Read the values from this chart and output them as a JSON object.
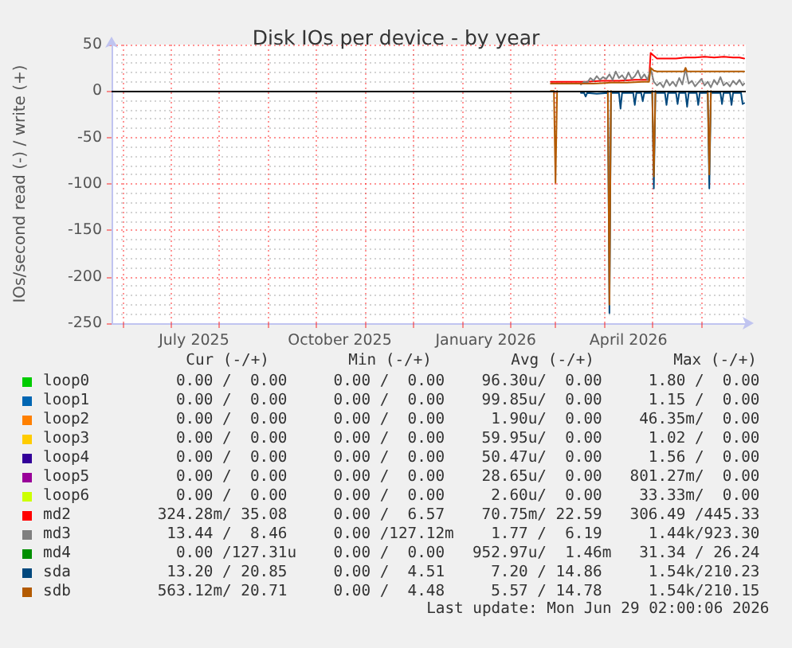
{
  "chart_data": {
    "type": "line",
    "title": "Disk IOs per device - by year",
    "ylabel": "IOs/second read (-) / write (+)",
    "xlim": [
      "2025-05-25",
      "2026-06-29"
    ],
    "xticks": [
      {
        "value": "2025-06-01",
        "label": null
      },
      {
        "value": "2025-07-01",
        "label": null
      },
      {
        "value": "2025-08-01",
        "label": null
      },
      {
        "value": "2025-09-01",
        "label": null
      },
      {
        "value": "2025-10-01",
        "label": null
      },
      {
        "value": "2025-11-01",
        "label": null
      },
      {
        "value": "2025-12-01",
        "label": null
      },
      {
        "value": "2026-01-01",
        "label": null
      },
      {
        "value": "2026-02-01",
        "label": null
      },
      {
        "value": "2026-03-01",
        "label": null
      },
      {
        "value": "2026-04-01",
        "label": null
      },
      {
        "value": "2026-05-01",
        "label": null
      },
      {
        "value": "2026-06-01",
        "label": null
      },
      {
        "value": "2025-07-16",
        "label": "July 2025"
      },
      {
        "value": "2025-10-16",
        "label": "October 2025"
      },
      {
        "value": "2026-01-16",
        "label": "January 2026"
      },
      {
        "value": "2026-04-16",
        "label": "April 2026"
      }
    ],
    "ylim": [
      -250,
      50
    ],
    "yticks": [
      -250,
      -200,
      -150,
      -100,
      -50,
      0,
      50
    ],
    "grid": true,
    "legend": "bottom",
    "ref_lines": [
      {
        "axis": "y",
        "value": 0,
        "color": "#000000"
      }
    ],
    "series": [
      {
        "name": "loop0",
        "color": "#00cc00"
      },
      {
        "name": "loop1",
        "color": "#0066b3"
      },
      {
        "name": "loop2",
        "color": "#ff8000"
      },
      {
        "name": "loop3",
        "color": "#ffcc00"
      },
      {
        "name": "loop4",
        "color": "#330099"
      },
      {
        "name": "loop5",
        "color": "#990099"
      },
      {
        "name": "loop6",
        "color": "#ccff00"
      },
      {
        "name": "md2",
        "color": "#ff0000",
        "x": [
          "2026-02-26",
          "2026-03-10",
          "2026-03-20",
          "2026-03-30",
          "2026-04-10",
          "2026-04-20",
          "2026-04-28",
          "2026-04-29",
          "2026-04-30",
          "2026-05-02",
          "2026-05-04",
          "2026-05-10",
          "2026-05-16",
          "2026-05-22",
          "2026-05-28",
          "2026-06-03",
          "2026-06-09",
          "2026-06-15",
          "2026-06-21",
          "2026-06-25",
          "2026-06-28"
        ],
        "values": [
          10,
          10,
          10,
          11,
          11,
          12,
          12,
          12,
          41,
          38,
          35,
          35,
          35,
          36,
          36,
          37,
          36,
          37,
          36,
          36,
          35
        ]
      },
      {
        "name": "md3",
        "color": "#808080",
        "x": [
          "2026-03-17",
          "2026-03-19",
          "2026-03-21",
          "2026-03-23",
          "2026-03-25",
          "2026-03-27",
          "2026-03-29",
          "2026-03-31",
          "2026-04-02",
          "2026-04-04",
          "2026-04-06",
          "2026-04-08",
          "2026-04-10",
          "2026-04-12",
          "2026-04-14",
          "2026-04-16",
          "2026-04-18",
          "2026-04-20",
          "2026-04-22",
          "2026-04-24",
          "2026-04-26",
          "2026-04-28",
          "2026-04-30",
          "2026-05-02",
          "2026-05-04",
          "2026-05-06",
          "2026-05-08",
          "2026-05-10",
          "2026-05-12",
          "2026-05-14",
          "2026-05-16",
          "2026-05-18",
          "2026-05-20",
          "2026-05-22",
          "2026-05-24",
          "2026-05-26",
          "2026-05-28",
          "2026-05-30",
          "2026-06-01",
          "2026-06-03",
          "2026-06-05",
          "2026-06-07",
          "2026-06-09",
          "2026-06-11",
          "2026-06-13",
          "2026-06-15",
          "2026-06-17",
          "2026-06-19",
          "2026-06-21",
          "2026-06-23",
          "2026-06-25",
          "2026-06-27",
          "2026-06-28"
        ],
        "values": [
          7,
          10,
          9,
          14,
          11,
          16,
          12,
          15,
          13,
          18,
          12,
          21,
          14,
          17,
          12,
          20,
          13,
          16,
          22,
          13,
          18,
          12,
          24,
          10,
          6,
          9,
          4,
          12,
          6,
          10,
          5,
          14,
          7,
          24,
          8,
          11,
          5,
          9,
          13,
          6,
          10,
          4,
          12,
          7,
          15,
          6,
          9,
          5,
          11,
          7,
          12,
          6,
          8
        ]
      },
      {
        "name": "md4",
        "color": "#008f00"
      },
      {
        "name": "sda",
        "color": "#00487d",
        "x": [
          "2026-03-17",
          "2026-03-19",
          "2026-03-20",
          "2026-03-21",
          "2026-03-27",
          "2026-04-03",
          "2026-04-04",
          "2026-04-05",
          "2026-04-10",
          "2026-04-11",
          "2026-04-12",
          "2026-04-19",
          "2026-04-20",
          "2026-04-21",
          "2026-04-24",
          "2026-04-25",
          "2026-04-26",
          "2026-05-01",
          "2026-05-02",
          "2026-05-03",
          "2026-05-09",
          "2026-05-10",
          "2026-05-11",
          "2026-05-16",
          "2026-05-17",
          "2026-05-18",
          "2026-05-22",
          "2026-05-23",
          "2026-05-24",
          "2026-05-29",
          "2026-05-30",
          "2026-05-31",
          "2026-06-05",
          "2026-06-06",
          "2026-06-07",
          "2026-06-13",
          "2026-06-14",
          "2026-06-15",
          "2026-06-19",
          "2026-06-20",
          "2026-06-21",
          "2026-06-26",
          "2026-06-27",
          "2026-06-28"
        ],
        "values": [
          -2,
          -2,
          -6,
          -2,
          -3,
          -2,
          -239,
          -2,
          -2,
          -19,
          -2,
          -2,
          -15,
          -2,
          -2,
          -11,
          -2,
          -2,
          -105,
          -2,
          -2,
          -15,
          -2,
          -2,
          -14,
          -2,
          -2,
          -17,
          -2,
          -2,
          -15,
          -2,
          -2,
          -105,
          -2,
          -2,
          -14,
          -2,
          -2,
          -15,
          -2,
          -2,
          -14,
          -13
        ]
      },
      {
        "name": "sdb",
        "color": "#b35a00",
        "x": [
          "2026-02-26",
          "2026-03-10",
          "2026-03-25",
          "2026-04-05",
          "2026-04-15",
          "2026-04-25",
          "2026-04-29",
          "2026-04-30",
          "2026-05-02",
          "2026-05-04",
          "2026-05-15",
          "2026-05-21",
          "2026-05-22",
          "2026-05-23",
          "2026-06-05",
          "2026-06-15",
          "2026-06-28"
        ],
        "values": [
          8,
          8,
          8,
          9,
          9,
          10,
          10,
          25,
          22,
          21,
          21,
          21,
          25,
          21,
          21,
          21,
          21
        ]
      },
      {
        "color": "#b35a00",
        "x": [
          "2026-02-26",
          "2026-02-28",
          "2026-03-01",
          "2026-03-02",
          "2026-03-03",
          "2026-04-03",
          "2026-04-04",
          "2026-04-05",
          "2026-04-06",
          "2026-05-01",
          "2026-05-02",
          "2026-05-03",
          "2026-05-04",
          "2026-06-05",
          "2026-06-06",
          "2026-06-07"
        ],
        "values": [
          0,
          0,
          -99,
          0,
          null,
          0,
          -230,
          0,
          null,
          0,
          -92,
          0,
          null,
          0,
          -90,
          0
        ]
      }
    ],
    "annotations": [
      "Cur (-/+)",
      "Min (-/+)",
      "Avg (-/+)",
      "Max (-/+)",
      "0.00 /  0.00     0.00 /  0.00    96.30u/  0.00     1.80 /  0.00",
      "0.00 /  0.00     0.00 /  0.00    99.85u/  0.00     1.15 /  0.00",
      "0.00 /  0.00     0.00 /  0.00     1.90u/  0.00    46.35m/  0.00",
      "0.00 /  0.00     0.00 /  0.00    59.95u/  0.00     1.02 /  0.00",
      "0.00 /  0.00     0.00 /  0.00    50.47u/  0.00     1.56 /  0.00",
      "0.00 /  0.00     0.00 /  0.00    28.65u/  0.00   801.27m/  0.00",
      "0.00 /  0.00     0.00 /  0.00     2.60u/  0.00    33.33m/  0.00",
      "324.28m/ 35.08     0.00 /  6.57    70.75m/ 22.59   306.49 /445.33",
      "13.44 /  8.46     0.00 /127.12m    1.77 /  6.19     1.44k/923.30",
      "0.00 /127.31u    0.00 /  0.00   952.97u/  1.46m   31.34 / 26.24",
      "13.20 / 20.85     0.00 /  4.51     7.20 / 14.86     1.54k/210.23",
      "563.12m/ 20.71     0.00 /  4.48     5.57 / 14.78     1.54k/210.15",
      "Last update: Mon Jun 29 02:00:06 2026"
    ]
  }
}
